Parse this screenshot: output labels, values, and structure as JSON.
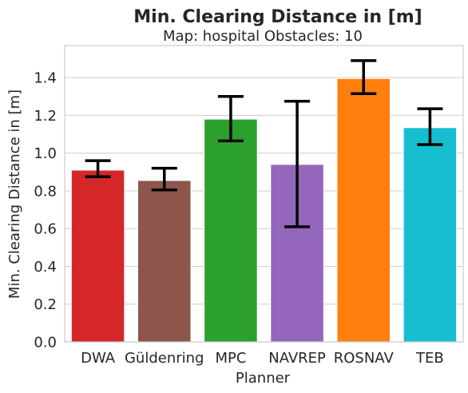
{
  "chart_data": {
    "type": "bar",
    "title": "Min. Clearing Distance in [m]",
    "subtitle": "Map: hospital Obstacles: 10",
    "xlabel": "Planner",
    "ylabel": "Min. Clearing Distance in [m]",
    "categories": [
      "DWA",
      "Güldenring",
      "MPC",
      "NAVREP",
      "ROSNAV",
      "TEB"
    ],
    "values": [
      0.91,
      0.855,
      1.18,
      0.94,
      1.395,
      1.135
    ],
    "error_low": [
      0.875,
      0.805,
      1.065,
      0.61,
      1.315,
      1.045
    ],
    "error_high": [
      0.96,
      0.92,
      1.3,
      1.275,
      1.49,
      1.235
    ],
    "colors": [
      "#d62728",
      "#8c564b",
      "#2ca02c",
      "#9467bd",
      "#ff7f0e",
      "#17becf"
    ],
    "ylim": [
      0,
      1.57
    ],
    "yticks": [
      "0.0",
      "0.2",
      "0.4",
      "0.6",
      "0.8",
      "1.0",
      "1.2",
      "1.4"
    ],
    "grid": true,
    "legend": "none"
  }
}
